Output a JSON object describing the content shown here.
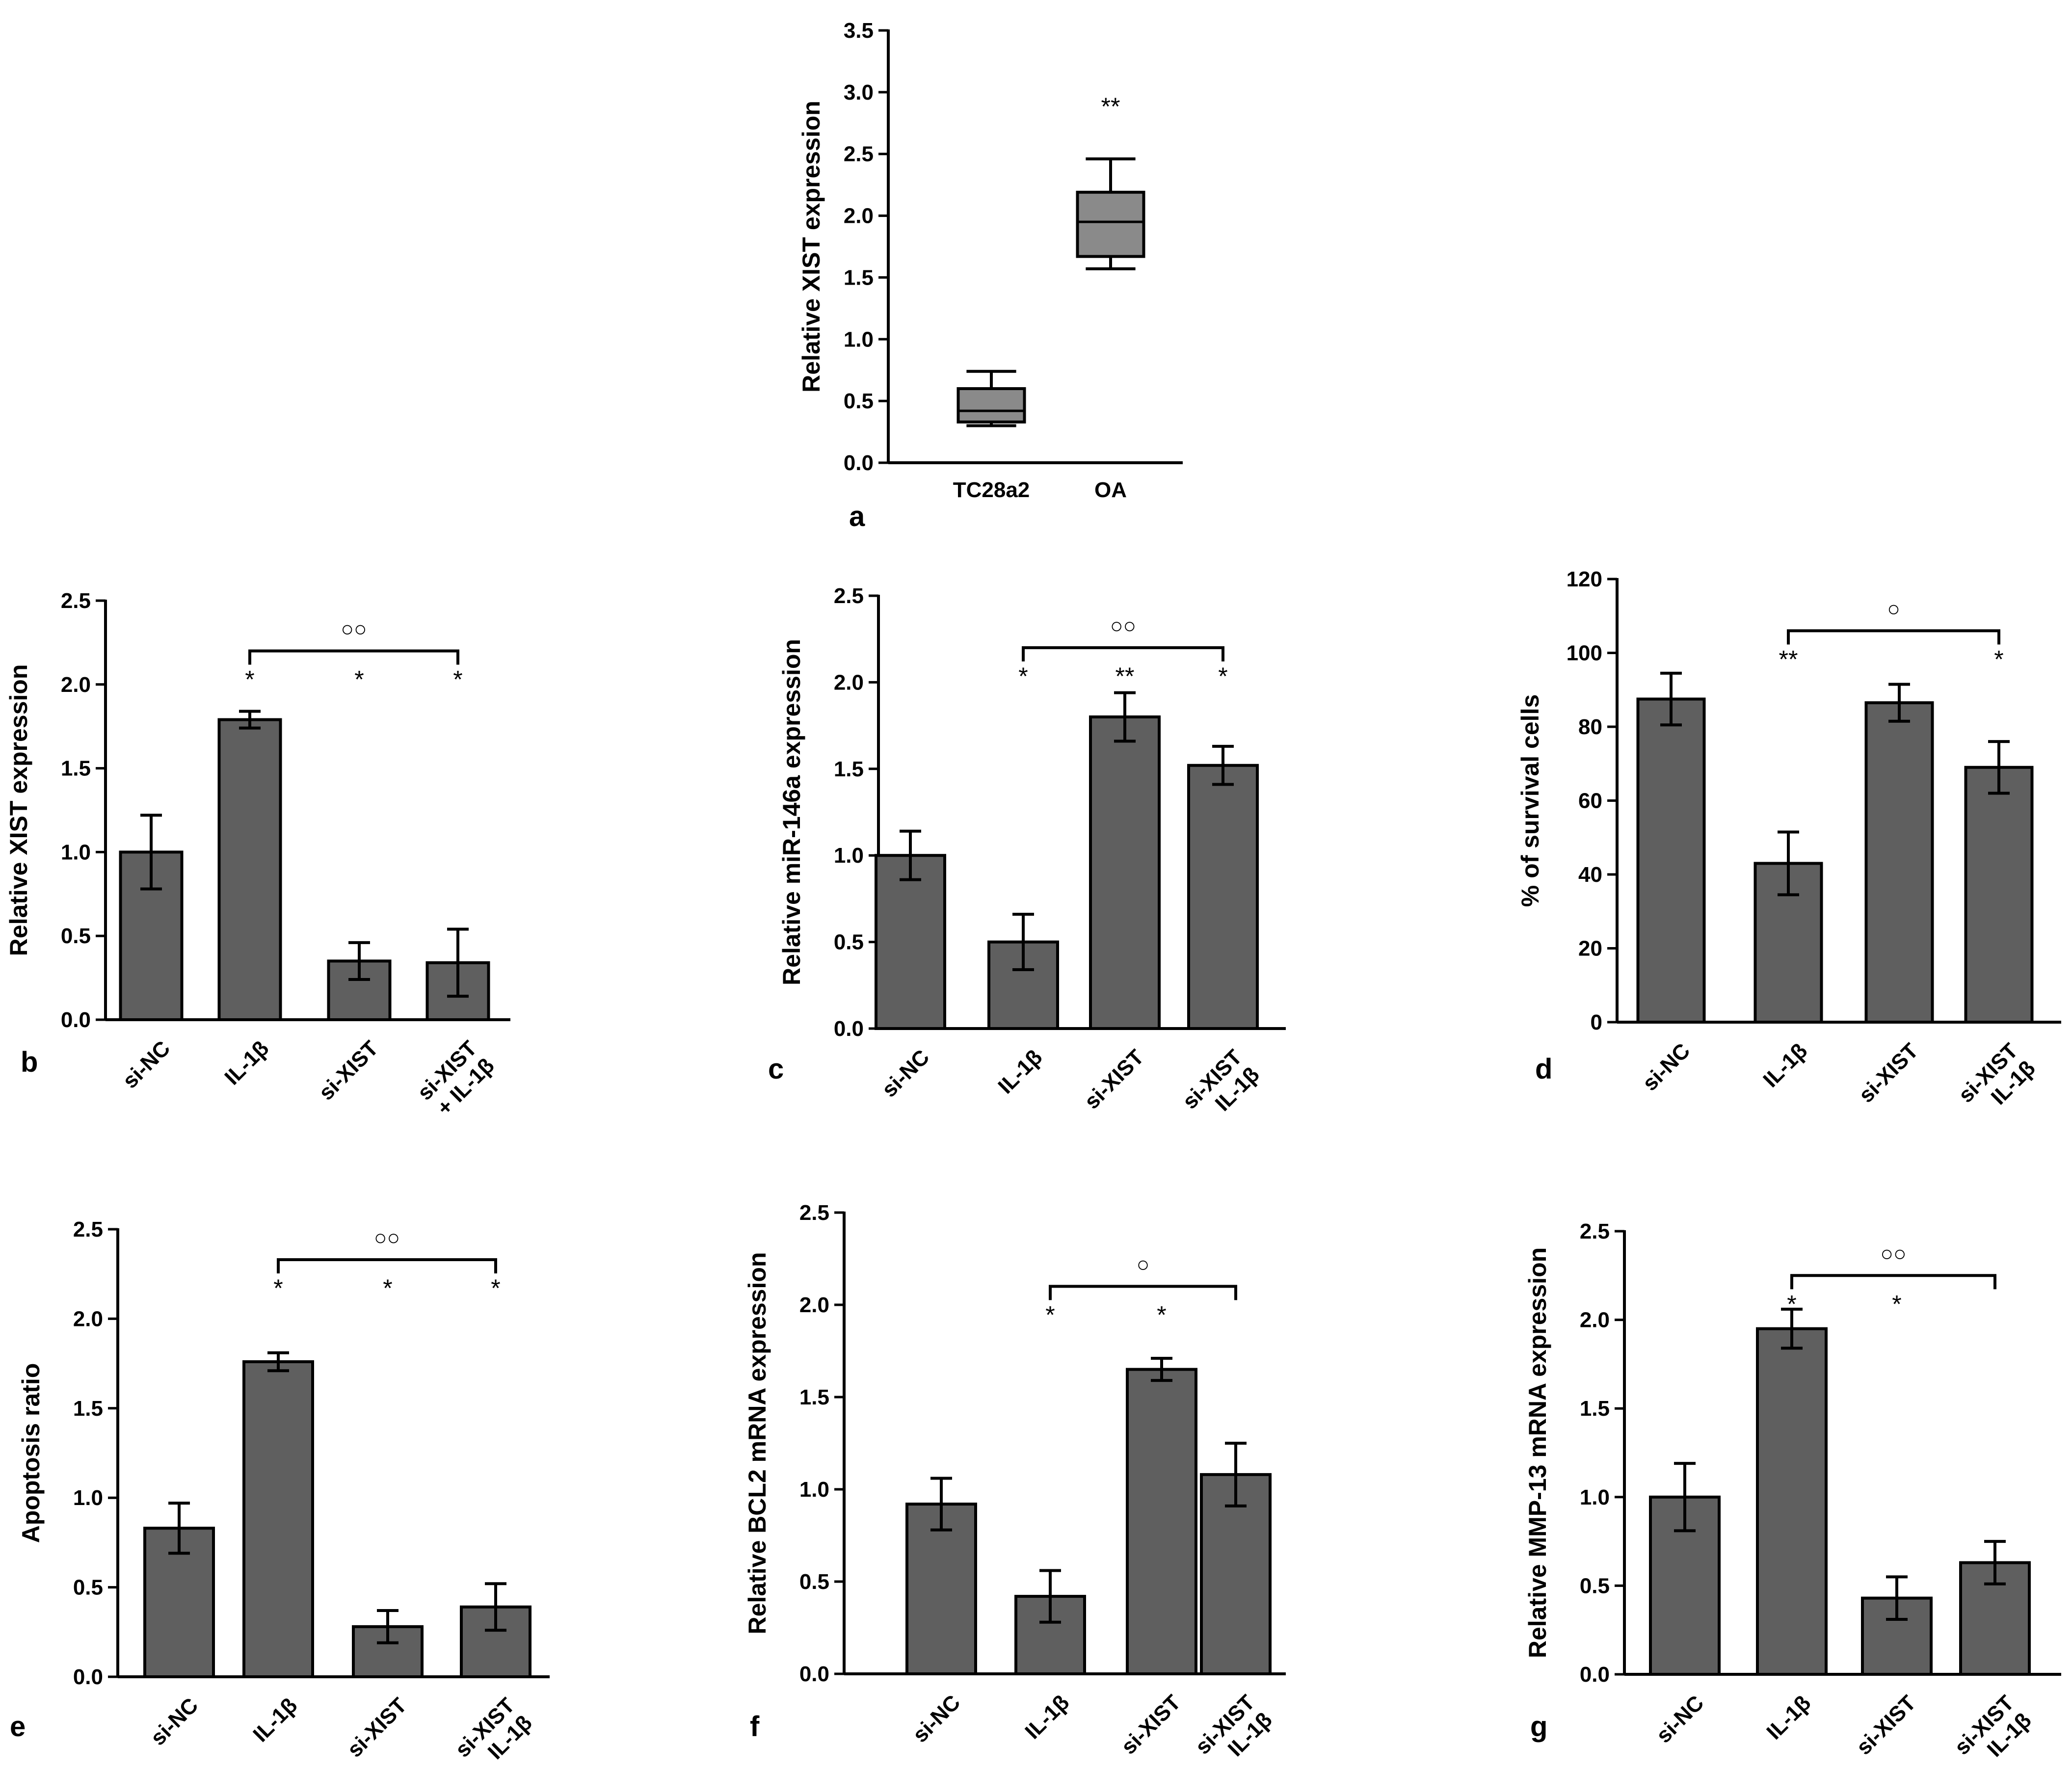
{
  "figure": {
    "colors": {
      "bar_fill": "#5f5f5f",
      "box_fill": "#8a8a8a",
      "stroke": "#000000"
    }
  },
  "chart_data": [
    {
      "panel": "a",
      "type": "box",
      "ylabel": "Relative XIST expression",
      "ylim": [
        0,
        3.5
      ],
      "yticks": [
        0.0,
        0.5,
        1.0,
        1.5,
        2.0,
        2.5,
        3.0,
        3.5
      ],
      "ytick_labels": [
        "0.0",
        "0.5",
        "1.0",
        "1.5",
        "2.0",
        "2.5",
        "3.0",
        "3.5"
      ],
      "categories": [
        "TC28a2",
        "OA"
      ],
      "boxes": [
        {
          "min": 0.3,
          "q1": 0.33,
          "median": 0.42,
          "q3": 0.6,
          "max": 0.74
        },
        {
          "min": 1.57,
          "q1": 1.67,
          "median": 1.95,
          "q3": 2.19,
          "max": 2.46
        }
      ],
      "significance": [
        "",
        "**"
      ]
    },
    {
      "panel": "b",
      "type": "bar",
      "ylabel": "Relative XIST expression",
      "ylim": [
        0,
        2.5
      ],
      "yticks": [
        0.0,
        0.5,
        1.0,
        1.5,
        2.0,
        2.5
      ],
      "ytick_labels": [
        "0.0",
        "0.5",
        "1.0",
        "1.5",
        "2.0",
        "2.5"
      ],
      "categories": [
        [
          "si-NC"
        ],
        [
          "IL-1β"
        ],
        [
          "si-XIST"
        ],
        [
          "si-XIST",
          "+ IL-1β"
        ]
      ],
      "values": [
        1.0,
        1.79,
        0.35,
        0.34
      ],
      "errors": [
        0.22,
        0.05,
        0.11,
        0.2
      ],
      "significance": [
        "",
        "*",
        "*",
        "*"
      ],
      "bracket": {
        "from": 1,
        "to": 3,
        "label": "○○",
        "level": 2.2
      }
    },
    {
      "panel": "c",
      "type": "bar",
      "ylabel": "Relative miR-146a expression",
      "ylim": [
        0,
        2.5
      ],
      "yticks": [
        0.0,
        0.5,
        1.0,
        1.5,
        2.0,
        2.5
      ],
      "ytick_labels": [
        "0.0",
        "0.5",
        "1.0",
        "1.5",
        "2.0",
        "2.5"
      ],
      "categories": [
        [
          "si-NC"
        ],
        [
          "IL-1β"
        ],
        [
          "si-XIST"
        ],
        [
          "si-XIST",
          "IL-1β"
        ]
      ],
      "values": [
        1.0,
        0.5,
        1.8,
        1.52
      ],
      "errors": [
        0.14,
        0.16,
        0.14,
        0.11
      ],
      "significance": [
        "",
        "*",
        "**",
        "*"
      ],
      "bracket": {
        "from": 1,
        "to": 3,
        "label": "○○",
        "level": 2.2
      }
    },
    {
      "panel": "d",
      "type": "bar",
      "ylabel": "% of survival cells",
      "ylim": [
        0,
        120
      ],
      "yticks": [
        0,
        20,
        40,
        60,
        80,
        100,
        120
      ],
      "ytick_labels": [
        "0",
        "20",
        "40",
        "60",
        "80",
        "100",
        "120"
      ],
      "categories": [
        [
          "si-NC"
        ],
        [
          "IL-1β"
        ],
        [
          "si-XIST"
        ],
        [
          "si-XIST",
          "IL-1β"
        ]
      ],
      "values": [
        87.5,
        43,
        86.5,
        69
      ],
      "errors": [
        7,
        8.5,
        5,
        7
      ],
      "significance": [
        "",
        "**",
        "",
        "*"
      ],
      "bracket": {
        "from": 1,
        "to": 3,
        "label": "○",
        "level": 106
      }
    },
    {
      "panel": "e",
      "type": "bar",
      "ylabel": "Apoptosis ratio",
      "ylim": [
        0,
        2.5
      ],
      "yticks": [
        0.0,
        0.5,
        1.0,
        1.5,
        2.0,
        2.5
      ],
      "ytick_labels": [
        "0.0",
        "0.5",
        "1.0",
        "1.5",
        "2.0",
        "2.5"
      ],
      "categories": [
        [
          "si-NC"
        ],
        [
          "IL-1β"
        ],
        [
          "si-XIST"
        ],
        [
          "si-XIST",
          "IL-1β"
        ]
      ],
      "values": [
        0.83,
        1.76,
        0.28,
        0.39
      ],
      "errors": [
        0.14,
        0.05,
        0.09,
        0.13
      ],
      "significance": [
        "",
        "*",
        "*",
        "*"
      ],
      "bracket": {
        "from": 1,
        "to": 3,
        "label": "○○",
        "level": 2.33
      }
    },
    {
      "panel": "f",
      "type": "bar",
      "ylabel": "Relative BCL2 mRNA expression",
      "ylim": [
        0,
        2.5
      ],
      "yticks": [
        0.0,
        0.5,
        1.0,
        1.5,
        2.0,
        2.5
      ],
      "ytick_labels": [
        "0.0",
        "0.5",
        "1.0",
        "1.5",
        "2.0",
        "2.5"
      ],
      "categories": [
        [
          "si-NC"
        ],
        [
          "IL-1β"
        ],
        [
          "si-XIST"
        ],
        [
          "si-XIST",
          "IL-1β"
        ]
      ],
      "values": [
        0.92,
        0.42,
        1.65,
        1.08
      ],
      "errors": [
        0.14,
        0.14,
        0.06,
        0.17
      ],
      "significance": [
        "",
        "*",
        "*",
        ""
      ],
      "bracket": {
        "from": 1,
        "to": 3,
        "label": "○",
        "level": 2.1
      }
    },
    {
      "panel": "g",
      "type": "bar",
      "ylabel": "Relative MMP-13 mRNA expression",
      "ylim": [
        0,
        2.5
      ],
      "yticks": [
        0.0,
        0.5,
        1.0,
        1.5,
        2.0,
        2.5
      ],
      "ytick_labels": [
        "0.0",
        "0.5",
        "1.0",
        "1.5",
        "2.0",
        "2.5"
      ],
      "categories": [
        [
          "si-NC"
        ],
        [
          "IL-1β"
        ],
        [
          "si-XIST"
        ],
        [
          "si-XIST",
          "IL-1β"
        ]
      ],
      "values": [
        1.0,
        1.95,
        0.43,
        0.63
      ],
      "errors": [
        0.19,
        0.11,
        0.12,
        0.12
      ],
      "significance": [
        "",
        "*",
        "*",
        ""
      ],
      "bracket": {
        "from": 1,
        "to": 3,
        "label": "○○",
        "level": 2.25
      }
    }
  ]
}
